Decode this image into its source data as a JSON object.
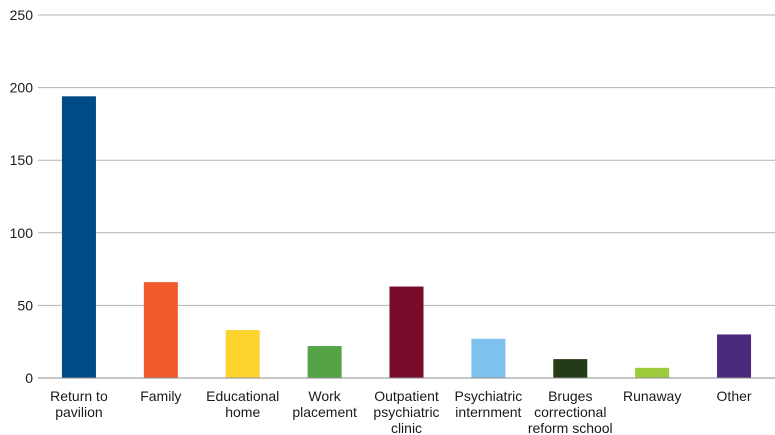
{
  "chart_data": {
    "type": "bar",
    "title": "",
    "xlabel": "",
    "ylabel": "",
    "ylim": [
      0,
      250
    ],
    "yticks": [
      0,
      50,
      100,
      150,
      200,
      250
    ],
    "grid": true,
    "legend": "none",
    "categories": [
      [
        "Return to",
        "pavilion"
      ],
      [
        "Family"
      ],
      [
        "Educational",
        "home"
      ],
      [
        "Work",
        "placement"
      ],
      [
        "Outpatient",
        "psychiatric",
        "clinic"
      ],
      [
        "Psychiatric",
        "internment"
      ],
      [
        "Bruges",
        "correctional",
        "reform school"
      ],
      [
        "Runaway"
      ],
      [
        "Other"
      ]
    ],
    "values": [
      194,
      66,
      33,
      22,
      63,
      27,
      13,
      7,
      30
    ],
    "colors": [
      "#004b87",
      "#f15a2b",
      "#fdd32e",
      "#54a346",
      "#770d2a",
      "#7cc2ec",
      "#253b17",
      "#9ccb3b",
      "#4b2a7b"
    ]
  }
}
